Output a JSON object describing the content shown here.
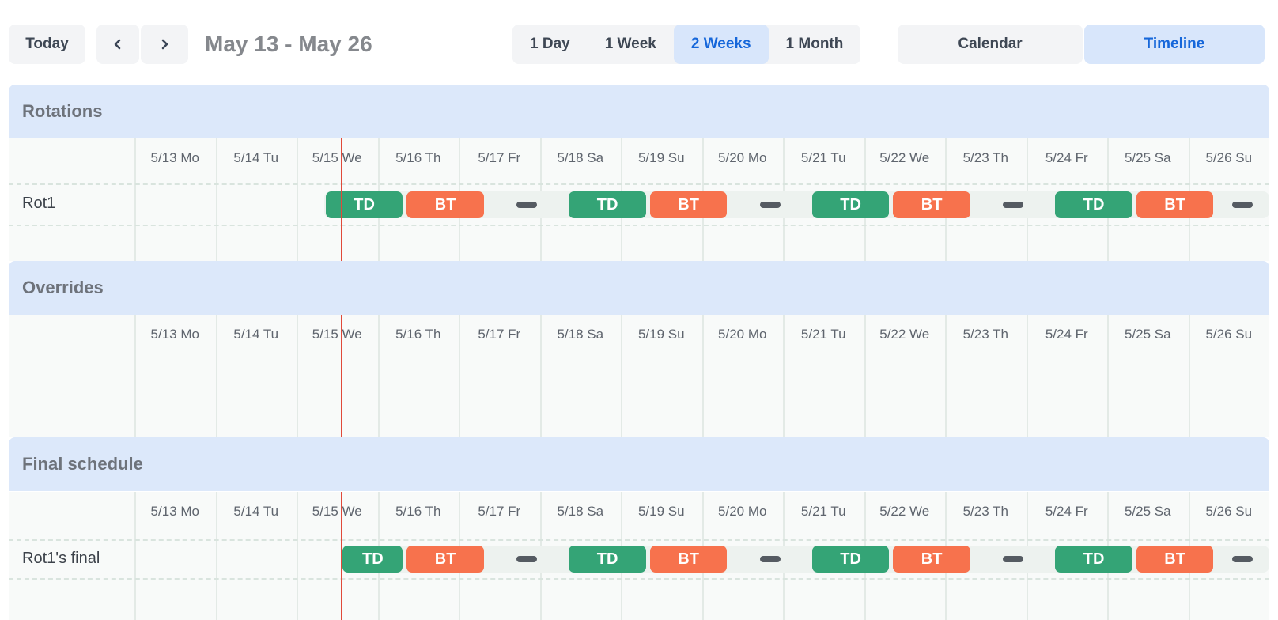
{
  "toolbar": {
    "today_label": "Today",
    "title": "May 13 - May 26",
    "nav_icons": [
      "chevron-left",
      "chevron-right"
    ],
    "range_tabs": [
      {
        "label": "1 Day",
        "selected": false
      },
      {
        "label": "1 Week",
        "selected": false
      },
      {
        "label": "2 Weeks",
        "selected": true
      },
      {
        "label": "1 Month",
        "selected": false
      }
    ],
    "view_tabs": [
      {
        "label": "Calendar",
        "selected": false
      },
      {
        "label": "Timeline",
        "selected": true
      }
    ]
  },
  "timeline": {
    "day_headers": [
      "5/13 Mo",
      "5/14 Tu",
      "5/15 We",
      "5/16 Th",
      "5/17 Fr",
      "5/18 Sa",
      "5/19 Su",
      "5/20 Mo",
      "5/21 Tu",
      "5/22 We",
      "5/23 Th",
      "5/24 Fr",
      "5/25 Sa",
      "5/26 Su"
    ],
    "day_count": 14,
    "now_marker_day": 2.55,
    "shift_types": {
      "TD": "#34a476",
      "BT": "#f7724d"
    },
    "sections": [
      {
        "title": "Rotations",
        "rows": [
          {
            "label": "Rot1",
            "strip": {
              "start": 2.34,
              "end": 14
            },
            "blocks": [
              {
                "kind": "shift",
                "label": "TD",
                "start": 2.34,
                "end": 3.34
              },
              {
                "kind": "shift",
                "label": "BT",
                "start": 3.34,
                "end": 4.34
              },
              {
                "kind": "gap",
                "start": 4.34,
                "end": 5.34
              },
              {
                "kind": "shift",
                "label": "TD",
                "start": 5.34,
                "end": 6.34
              },
              {
                "kind": "shift",
                "label": "BT",
                "start": 6.34,
                "end": 7.34
              },
              {
                "kind": "gap",
                "start": 7.34,
                "end": 8.34
              },
              {
                "kind": "shift",
                "label": "TD",
                "start": 8.34,
                "end": 9.34
              },
              {
                "kind": "shift",
                "label": "BT",
                "start": 9.34,
                "end": 10.34
              },
              {
                "kind": "gap",
                "start": 10.34,
                "end": 11.34
              },
              {
                "kind": "shift",
                "label": "TD",
                "start": 11.34,
                "end": 12.34
              },
              {
                "kind": "shift",
                "label": "BT",
                "start": 12.34,
                "end": 13.34
              },
              {
                "kind": "gap",
                "start": 13.34,
                "end": 14
              }
            ]
          }
        ]
      },
      {
        "title": "Overrides",
        "rows": []
      },
      {
        "title": "Final schedule",
        "rows": [
          {
            "label": "Rot1's final",
            "strip": {
              "start": 2.55,
              "end": 14
            },
            "blocks": [
              {
                "kind": "shift",
                "label": "TD",
                "start": 2.55,
                "end": 3.34
              },
              {
                "kind": "shift",
                "label": "BT",
                "start": 3.34,
                "end": 4.34
              },
              {
                "kind": "gap",
                "start": 4.34,
                "end": 5.34
              },
              {
                "kind": "shift",
                "label": "TD",
                "start": 5.34,
                "end": 6.34
              },
              {
                "kind": "shift",
                "label": "BT",
                "start": 6.34,
                "end": 7.34
              },
              {
                "kind": "gap",
                "start": 7.34,
                "end": 8.34
              },
              {
                "kind": "shift",
                "label": "TD",
                "start": 8.34,
                "end": 9.34
              },
              {
                "kind": "shift",
                "label": "BT",
                "start": 9.34,
                "end": 10.34
              },
              {
                "kind": "gap",
                "start": 10.34,
                "end": 11.34
              },
              {
                "kind": "shift",
                "label": "TD",
                "start": 11.34,
                "end": 12.34
              },
              {
                "kind": "shift",
                "label": "BT",
                "start": 12.34,
                "end": 13.34
              },
              {
                "kind": "gap",
                "start": 13.34,
                "end": 14
              }
            ]
          }
        ]
      }
    ]
  },
  "colors": {
    "header_bg": "#dce8fa",
    "selected_bg": "#d8e6fb",
    "accent_blue": "#1667da",
    "shift_td": "#34a476",
    "shift_bt": "#f7724d",
    "now_line": "#e0493a"
  }
}
